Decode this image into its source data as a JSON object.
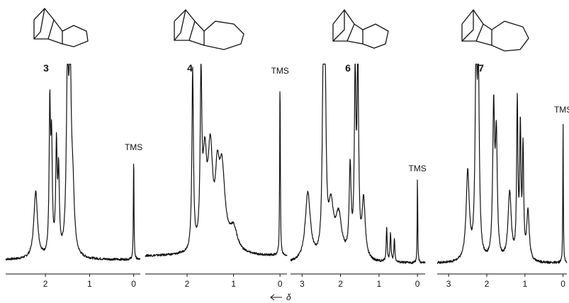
{
  "chart_data": [
    {
      "type": "line",
      "label": "3",
      "x_range": [
        2.9,
        -0.15
      ],
      "x_ticks": [
        2,
        1,
        0
      ],
      "tms_label": "TMS",
      "peaks": [
        {
          "x": 2.22,
          "h": 0.35,
          "w": 0.05
        },
        {
          "x": 1.9,
          "h": 0.75,
          "w": 0.018
        },
        {
          "x": 1.86,
          "h": 0.55,
          "w": 0.02
        },
        {
          "x": 1.75,
          "h": 0.55,
          "w": 0.02
        },
        {
          "x": 1.7,
          "h": 0.4,
          "w": 0.02
        },
        {
          "x": 1.5,
          "h": 0.9,
          "w": 0.03
        },
        {
          "x": 1.44,
          "h": 0.9,
          "w": 0.03
        },
        {
          "x": 1.38,
          "h": 0.3,
          "w": 0.04
        },
        {
          "x": 0.0,
          "h": 0.55,
          "w": 0.008
        }
      ]
    },
    {
      "type": "line",
      "label": "4",
      "x_range": [
        2.9,
        -0.15
      ],
      "x_ticks": [
        2,
        1,
        0
      ],
      "tms_label": "TMS",
      "peaks": [
        {
          "x": 1.88,
          "h": 0.95,
          "w": 0.02
        },
        {
          "x": 1.7,
          "h": 0.88,
          "w": 0.02
        },
        {
          "x": 1.62,
          "h": 0.45,
          "w": 0.05
        },
        {
          "x": 1.5,
          "h": 0.5,
          "w": 0.06
        },
        {
          "x": 1.35,
          "h": 0.3,
          "w": 0.05
        },
        {
          "x": 1.25,
          "h": 0.42,
          "w": 0.08
        },
        {
          "x": 1.0,
          "h": 0.12,
          "w": 0.1
        },
        {
          "x": 0.0,
          "h": 0.95,
          "w": 0.008
        }
      ]
    },
    {
      "type": "line",
      "label": "6",
      "x_range": [
        3.3,
        -0.2
      ],
      "x_ticks": [
        3,
        2,
        1,
        0
      ],
      "tms_label": "TMS",
      "peaks": [
        {
          "x": 2.85,
          "h": 0.35,
          "w": 0.08
        },
        {
          "x": 2.45,
          "h": 0.85,
          "w": 0.03
        },
        {
          "x": 2.4,
          "h": 0.8,
          "w": 0.03
        },
        {
          "x": 2.25,
          "h": 0.25,
          "w": 0.08
        },
        {
          "x": 2.05,
          "h": 0.22,
          "w": 0.1
        },
        {
          "x": 1.75,
          "h": 0.45,
          "w": 0.03
        },
        {
          "x": 1.62,
          "h": 0.9,
          "w": 0.025
        },
        {
          "x": 1.55,
          "h": 0.95,
          "w": 0.025
        },
        {
          "x": 1.4,
          "h": 0.3,
          "w": 0.05
        },
        {
          "x": 0.8,
          "h": 0.18,
          "w": 0.015
        },
        {
          "x": 0.7,
          "h": 0.15,
          "w": 0.015
        },
        {
          "x": 0.6,
          "h": 0.12,
          "w": 0.015
        },
        {
          "x": 0.0,
          "h": 0.45,
          "w": 0.008
        }
      ]
    },
    {
      "type": "line",
      "label": "7",
      "x_range": [
        3.3,
        -0.1
      ],
      "x_ticks": [
        3,
        2,
        1,
        0
      ],
      "tms_label": "TMS",
      "peaks": [
        {
          "x": 2.5,
          "h": 0.45,
          "w": 0.05
        },
        {
          "x": 2.28,
          "h": 1.0,
          "w": 0.03
        },
        {
          "x": 2.22,
          "h": 0.85,
          "w": 0.03
        },
        {
          "x": 1.82,
          "h": 0.75,
          "w": 0.03
        },
        {
          "x": 1.75,
          "h": 0.6,
          "w": 0.03
        },
        {
          "x": 1.4,
          "h": 0.35,
          "w": 0.05
        },
        {
          "x": 1.2,
          "h": 0.8,
          "w": 0.02
        },
        {
          "x": 1.12,
          "h": 0.65,
          "w": 0.02
        },
        {
          "x": 1.05,
          "h": 0.55,
          "w": 0.02
        },
        {
          "x": 0.92,
          "h": 0.25,
          "w": 0.04
        },
        {
          "x": 0.0,
          "h": 0.75,
          "w": 0.008
        }
      ]
    }
  ],
  "axis_symbol": "δ"
}
